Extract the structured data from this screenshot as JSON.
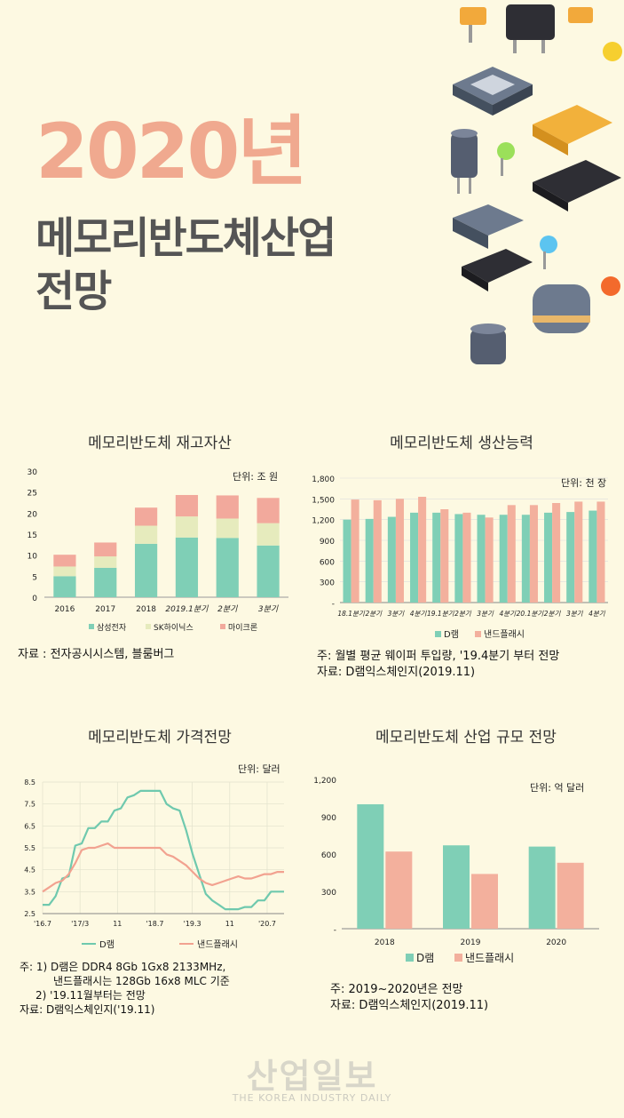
{
  "header": {
    "year": "2020년",
    "title_line1": "메모리반도체산업",
    "title_line2": "전망"
  },
  "colors": {
    "teal": "#7fcfb6",
    "lightgreen": "#e6ebbd",
    "pink": "#f2a99c",
    "salmon": "#f3b09d"
  },
  "chart_data": [
    {
      "type": "bar",
      "stacked": true,
      "title": "메모리반도체 재고자산",
      "unit": "단위: 조 원",
      "categories": [
        "2016",
        "2017",
        "2018",
        "2019.1분기",
        "2분기",
        "3분기"
      ],
      "ylim": [
        0,
        30
      ],
      "yticks": [
        0,
        5,
        10,
        15,
        20,
        25,
        30
      ],
      "series": [
        {
          "name": "삼성전자",
          "values": [
            5,
            7,
            12.7,
            14.2,
            14.1,
            12.3
          ]
        },
        {
          "name": "SK하이닉스",
          "values": [
            2.3,
            2.7,
            4.3,
            5,
            4.6,
            5.3
          ]
        },
        {
          "name": "마이크론",
          "values": [
            2.8,
            3.3,
            4.3,
            5.1,
            5.5,
            6
          ]
        }
      ],
      "source": "자료 : 전자공시시스템, 블룸버그"
    },
    {
      "type": "bar",
      "title": "메모리반도체 생산능력",
      "unit": "단위: 천 장",
      "categories": [
        "18.1분기",
        "2분기",
        "3분기",
        "4분기",
        "19.1분기",
        "2분기",
        "3분기",
        "4분기",
        "20.1분기",
        "2분기",
        "3분기",
        "4분기"
      ],
      "ylim": [
        0,
        1800
      ],
      "yticks": [
        "-",
        "300",
        "600",
        "900",
        "1,200",
        "1,500",
        "1,800"
      ],
      "series": [
        {
          "name": "D램",
          "values": [
            1200,
            1210,
            1240,
            1300,
            1300,
            1280,
            1270,
            1270,
            1270,
            1300,
            1310,
            1330
          ]
        },
        {
          "name": "낸드플래시",
          "values": [
            1490,
            1480,
            1500,
            1530,
            1350,
            1300,
            1230,
            1410,
            1410,
            1440,
            1460,
            1460
          ]
        }
      ],
      "note": "주: 월별 평균 웨이퍼 투입량, '19.4분기 부터 전망",
      "source": "자료: D램익스체인지(2019.11)"
    },
    {
      "type": "line",
      "title": "메모리반도체 가격전망",
      "unit": "단위: 달러",
      "xticks": [
        "'16.7",
        "'17/3",
        "11",
        "'18.7",
        "'19.3",
        "11",
        "'20.7"
      ],
      "ylim": [
        2.5,
        8.5
      ],
      "yticks": [
        "2.5",
        "3.5",
        "4.5",
        "5.5",
        "6.5",
        "7.5",
        "8.5"
      ],
      "series": [
        {
          "name": "D램",
          "values": [
            2.9,
            2.9,
            3.3,
            4.1,
            4.2,
            5.6,
            5.7,
            6.4,
            6.4,
            6.7,
            6.7,
            7.2,
            7.3,
            7.8,
            7.9,
            8.1,
            8.1,
            8.1,
            8.1,
            7.5,
            7.3,
            7.2,
            6.3,
            5.2,
            4.3,
            3.4,
            3.1,
            2.9,
            2.7,
            2.7,
            2.7,
            2.8,
            2.8,
            3.1,
            3.1,
            3.5,
            3.5,
            3.5
          ]
        },
        {
          "name": "낸드플래시",
          "values": [
            3.5,
            3.7,
            3.9,
            4.0,
            4.3,
            4.8,
            5.4,
            5.5,
            5.5,
            5.6,
            5.7,
            5.5,
            5.5,
            5.5,
            5.5,
            5.5,
            5.5,
            5.5,
            5.5,
            5.2,
            5.1,
            4.9,
            4.7,
            4.4,
            4.1,
            3.9,
            3.8,
            3.9,
            4.0,
            4.1,
            4.2,
            4.1,
            4.1,
            4.2,
            4.3,
            4.3,
            4.4,
            4.4
          ]
        }
      ],
      "note1": "주: 1) D램은 DDR4 8Gb 1Gx8 2133MHz,",
      "note2": "낸드플래시는 128Gb 16x8 MLC 기준",
      "note3": "2) '19.11월부터는 전망",
      "source": "자료: D램익스체인지('19.11)"
    },
    {
      "type": "bar",
      "title": "메모리반도체 산업 규모 전망",
      "unit": "단위: 억 달러",
      "categories": [
        "2018",
        "2019",
        "2020"
      ],
      "ylim": [
        0,
        1200
      ],
      "yticks": [
        "-",
        "300",
        "600",
        "900",
        "1,200"
      ],
      "series": [
        {
          "name": "D램",
          "values": [
            1000,
            670,
            660
          ]
        },
        {
          "name": "낸드플래시",
          "values": [
            620,
            440,
            530
          ]
        }
      ],
      "note": "주: 2019~2020년은 전망",
      "source": "자료: D램익스체인지(2019.11)"
    }
  ],
  "watermark": {
    "main": "산업일보",
    "sub": "THE KOREA INDUSTRY DAILY"
  }
}
